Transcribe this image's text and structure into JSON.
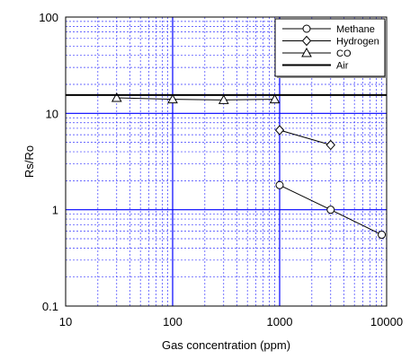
{
  "chart_data": {
    "type": "line",
    "xscale": "log",
    "yscale": "log",
    "xlim": [
      10,
      10000
    ],
    "ylim": [
      0.1,
      100
    ],
    "xlabel": "Gas concentration (ppm)",
    "ylabel": "Rs/Ro",
    "grid": true,
    "legend": "top-right",
    "x_ticks": [
      "10",
      "100",
      "1000",
      "10000"
    ],
    "y_ticks": [
      "0.1",
      "1",
      "10",
      "100"
    ],
    "series": [
      {
        "name": "Methane",
        "marker": "circle",
        "points": [
          [
            1000,
            1.8
          ],
          [
            3000,
            1.0
          ],
          [
            9000,
            0.55
          ]
        ]
      },
      {
        "name": "Hydrogen",
        "marker": "diamond",
        "points": [
          [
            1000,
            6.7
          ],
          [
            3000,
            4.7
          ]
        ]
      },
      {
        "name": "CO",
        "marker": "triangle",
        "points": [
          [
            30,
            14.5
          ],
          [
            100,
            14.0
          ],
          [
            300,
            13.8
          ],
          [
            900,
            14.0
          ]
        ]
      },
      {
        "name": "Air",
        "marker": "none",
        "points": [
          [
            10,
            15.5
          ],
          [
            10000,
            15.5
          ]
        ]
      }
    ],
    "colors": {
      "line": "#000000",
      "major_grid": "#0000ff",
      "minor_grid": "#3a3aff"
    }
  }
}
